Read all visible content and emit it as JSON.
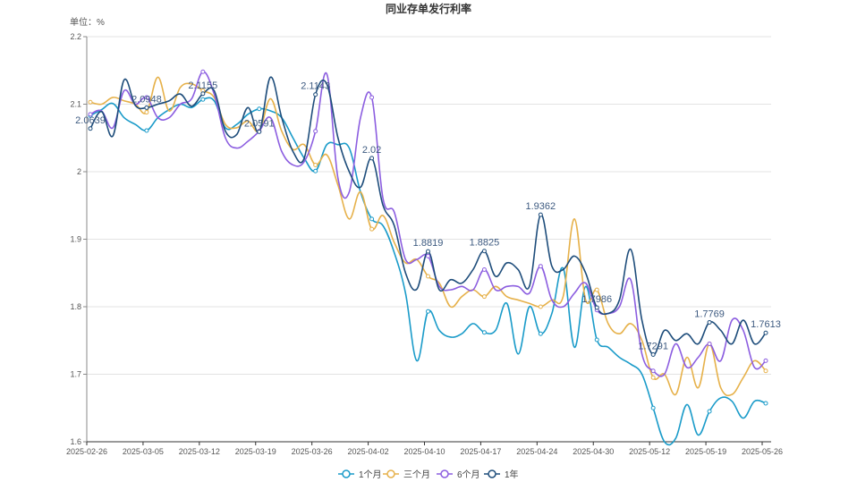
{
  "chart_data": {
    "type": "line",
    "title": "同业存单发行利率",
    "ylabel": "单位：%",
    "xlabel": "",
    "ylim": [
      1.6,
      2.2
    ],
    "yticks": [
      "1.6",
      "1.7",
      "1.8",
      "1.9",
      "2",
      "2.1",
      "2.2"
    ],
    "grid": true,
    "legend_position": "bottom",
    "x": [
      "2025-02-26",
      "2025-02-27",
      "2025-02-28",
      "2025-03-03",
      "2025-03-04",
      "2025-03-05",
      "2025-03-06",
      "2025-03-07",
      "2025-03-10",
      "2025-03-11",
      "2025-03-12",
      "2025-03-13",
      "2025-03-14",
      "2025-03-17",
      "2025-03-18",
      "2025-03-19",
      "2025-03-20",
      "2025-03-21",
      "2025-03-24",
      "2025-03-25",
      "2025-03-26",
      "2025-03-27",
      "2025-03-28",
      "2025-03-31",
      "2025-04-01",
      "2025-04-02",
      "2025-04-03",
      "2025-04-07",
      "2025-04-08",
      "2025-04-09",
      "2025-04-10",
      "2025-04-11",
      "2025-04-14",
      "2025-04-15",
      "2025-04-16",
      "2025-04-17",
      "2025-04-18",
      "2025-04-21",
      "2025-04-22",
      "2025-04-23",
      "2025-04-24",
      "2025-04-25",
      "2025-04-27",
      "2025-04-28",
      "2025-04-29",
      "2025-04-30",
      "2025-05-06",
      "2025-05-07",
      "2025-05-08",
      "2025-05-09",
      "2025-05-12",
      "2025-05-13",
      "2025-05-14",
      "2025-05-15",
      "2025-05-16",
      "2025-05-19",
      "2025-05-20",
      "2025-05-21",
      "2025-05-22",
      "2025-05-23",
      "2025-05-26"
    ],
    "xtick_every": 5,
    "series": [
      {
        "name": "1个月",
        "color": "#1a9bc9",
        "values": [
          2.083,
          2.092,
          2.101,
          2.08,
          2.07,
          2.061,
          2.08,
          2.092,
          2.1,
          2.095,
          2.107,
          2.105,
          2.065,
          2.07,
          2.085,
          2.093,
          2.09,
          2.08,
          2.05,
          2.02,
          2.001,
          2.04,
          2.04,
          2.035,
          1.97,
          1.93,
          1.92,
          1.88,
          1.82,
          1.72,
          1.793,
          1.765,
          1.755,
          1.76,
          1.775,
          1.762,
          1.765,
          1.805,
          1.73,
          1.8,
          1.76,
          1.79,
          1.857,
          1.74,
          1.83,
          1.751,
          1.74,
          1.725,
          1.715,
          1.7,
          1.65,
          1.6,
          1.605,
          1.655,
          1.61,
          1.645,
          1.665,
          1.66,
          1.635,
          1.66,
          1.657
        ]
      },
      {
        "name": "三个月",
        "color": "#e6b14a",
        "values": [
          2.103,
          2.1,
          2.11,
          2.105,
          2.1,
          2.088,
          2.14,
          2.09,
          2.125,
          2.13,
          2.12,
          2.11,
          2.07,
          2.065,
          2.075,
          2.06,
          2.108,
          2.06,
          2.033,
          2.04,
          2.01,
          2.025,
          1.98,
          1.93,
          1.97,
          1.915,
          1.935,
          1.895,
          1.865,
          1.87,
          1.845,
          1.835,
          1.8,
          1.815,
          1.825,
          1.815,
          1.83,
          1.815,
          1.81,
          1.805,
          1.8,
          1.81,
          1.815,
          1.93,
          1.81,
          1.825,
          1.775,
          1.76,
          1.775,
          1.75,
          1.695,
          1.7,
          1.67,
          1.725,
          1.68,
          1.745,
          1.68,
          1.67,
          1.695,
          1.72,
          1.705
        ]
      },
      {
        "name": "6个月",
        "color": "#8c5ee0",
        "values": [
          2.085,
          2.09,
          2.065,
          2.12,
          2.1,
          2.11,
          2.08,
          2.08,
          2.1,
          2.108,
          2.148,
          2.115,
          2.05,
          2.035,
          2.045,
          2.06,
          2.08,
          2.03,
          2.01,
          2.015,
          2.06,
          2.145,
          1.99,
          1.97,
          2.08,
          2.11,
          1.96,
          1.94,
          1.87,
          1.87,
          1.875,
          1.83,
          1.825,
          1.83,
          1.825,
          1.855,
          1.825,
          1.83,
          1.83,
          1.82,
          1.86,
          1.81,
          1.8,
          1.82,
          1.835,
          1.795,
          1.79,
          1.8,
          1.84,
          1.73,
          1.705,
          1.7,
          1.745,
          1.71,
          1.725,
          1.745,
          1.72,
          1.78,
          1.765,
          1.71,
          1.72
        ]
      },
      {
        "name": "1年",
        "color": "#1e4d7b",
        "values": [
          2.0639,
          2.089,
          2.053,
          2.136,
          2.098,
          2.0948,
          2.1,
          2.105,
          2.115,
          2.097,
          2.1155,
          2.12,
          2.06,
          2.055,
          2.095,
          2.0591,
          2.14,
          2.08,
          2.03,
          2.02,
          2.1143,
          2.13,
          2.05,
          2.0,
          1.977,
          2.02,
          1.95,
          1.92,
          1.85,
          1.826,
          1.8819,
          1.825,
          1.84,
          1.835,
          1.855,
          1.8825,
          1.845,
          1.865,
          1.855,
          1.83,
          1.9362,
          1.86,
          1.855,
          1.875,
          1.85,
          1.7986,
          1.79,
          1.81,
          1.885,
          1.78,
          1.7291,
          1.765,
          1.75,
          1.76,
          1.745,
          1.7769,
          1.765,
          1.745,
          1.78,
          1.745,
          1.7613
        ],
        "point_labels": {
          "0": "2.0639",
          "5": "2.0948",
          "10": "2.1155",
          "15": "2.0591",
          "20": "2.1143",
          "25": "2.02",
          "30": "1.8819",
          "35": "1.8825",
          "40": "1.9362",
          "45": "1.7986",
          "50": "1.7291",
          "55": "1.7769",
          "60": "1.7613"
        }
      }
    ]
  }
}
